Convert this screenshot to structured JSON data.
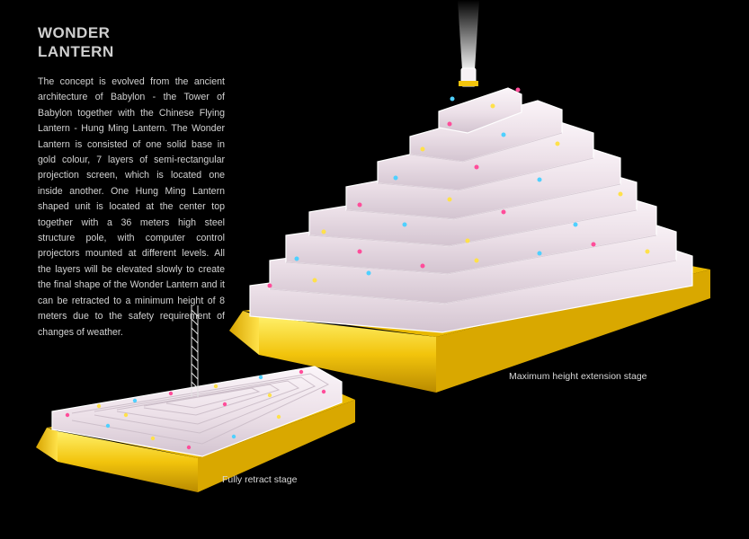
{
  "title": {
    "line1": "WONDER",
    "line2": "LANTERN"
  },
  "description": "The concept is evolved from the ancient architecture of Babylon - the Tower of Babylon together with the Chinese Flying Lantern - Hung Ming Lantern. The Wonder Lantern is consisted of one solid base in gold colour, 7 layers of semi-rectangular projection screen, which is located one inside another. One Hung Ming Lantern shaped unit is located at the center top together with a 36 meters high steel structure pole, with computer control projectors mounted at different levels. All the layers will be elevated slowly to create the final shape of the Wonder Lantern and it can be retracted to a minimum height of 8 meters due to the safety requirement of changes of weather.",
  "captions": {
    "maximum": "Maximum height extension stage",
    "retract": "Fully retract stage"
  },
  "colors": {
    "background": "#000000",
    "base_gold": "#f2c40c",
    "screen": "#f3e8ee"
  },
  "tower": {
    "screen_layers": 7
  }
}
